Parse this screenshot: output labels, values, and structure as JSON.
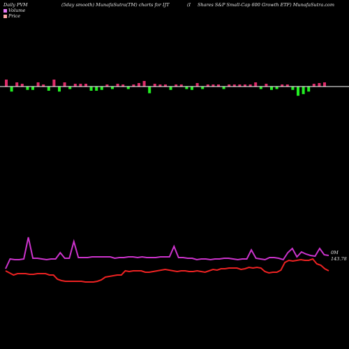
{
  "header": {
    "left": "Daily PVM",
    "middle": "(5day smooth) MunafaSutra(TM) charts for IJT",
    "right_prefix": "(I",
    "right": "Shares S&P Small-Cap 600 Growth ETF) MunafaSutra.com"
  },
  "legend": {
    "volume_label": "Volume",
    "price_label": "Price",
    "volume_color": "#e879f9",
    "price_color": "#fca5a5"
  },
  "labels": {
    "volume_end": "0M",
    "price_end": "143.78"
  },
  "colors": {
    "background": "#000000",
    "up_bar": "#dd2b6a",
    "down_bar": "#22ee22",
    "volume_line": "#cc33cc",
    "price_line": "#ee2222",
    "baseline": "#ffffff"
  },
  "chart_data": {
    "type": "line",
    "bars": {
      "dirs": [
        1,
        -1,
        1,
        1,
        -1,
        -1,
        1,
        1,
        -1,
        1,
        -1,
        1,
        -1,
        1,
        1,
        1,
        -1,
        -1,
        -1,
        1,
        -1,
        1,
        1,
        -1,
        1,
        1,
        1,
        -1,
        1,
        1,
        1,
        -1,
        1,
        1,
        -1,
        -1,
        1,
        -1,
        1,
        1,
        1,
        -1,
        1,
        1,
        1,
        1,
        1,
        1,
        -1,
        1,
        -1,
        -1,
        1,
        1,
        -1,
        -1,
        -1,
        -1,
        1,
        1,
        1
      ],
      "mags": [
        10,
        6,
        6,
        4,
        4,
        4,
        6,
        3,
        5,
        10,
        6,
        6,
        3,
        4,
        4,
        4,
        5,
        5,
        4,
        3,
        3,
        4,
        3,
        3,
        3,
        5,
        8,
        8,
        4,
        3,
        3,
        4,
        3,
        3,
        3,
        4,
        5,
        3,
        3,
        3,
        3,
        3,
        3,
        3,
        3,
        3,
        3,
        6,
        3,
        4,
        4,
        3,
        3,
        3,
        4,
        11,
        9,
        6,
        4,
        5,
        6
      ]
    },
    "volume_line": [
      385,
      371,
      372,
      372,
      371,
      340,
      370,
      370,
      371,
      372,
      371,
      371,
      362,
      370,
      370,
      346,
      369,
      369,
      369,
      368,
      368,
      368,
      368,
      368,
      370,
      369,
      369,
      368,
      368,
      369,
      368,
      369,
      369,
      369,
      368,
      368,
      368,
      353,
      369,
      369,
      370,
      370,
      372,
      371,
      371,
      372,
      371,
      371,
      370,
      370,
      371,
      372,
      371,
      371,
      358,
      370,
      371,
      372,
      369,
      369,
      370,
      372,
      362,
      356,
      368,
      361,
      364,
      366,
      367,
      356,
      365,
      366
    ],
    "price_line": [
      12,
      9,
      6,
      8,
      8,
      8,
      7,
      7,
      8,
      8,
      8,
      6,
      6,
      0,
      -2,
      -3,
      -3,
      -3,
      -3,
      -3,
      -4,
      -4,
      -4,
      -3,
      -1,
      3,
      4,
      5,
      6,
      6,
      12,
      11,
      12,
      12,
      12,
      10,
      10,
      11,
      12,
      13,
      14,
      13,
      12,
      11,
      12,
      12,
      11,
      11,
      12,
      11,
      10,
      12,
      14,
      13,
      15,
      15,
      16,
      16,
      16,
      14,
      15,
      17,
      16,
      17,
      16,
      11,
      9,
      10,
      10,
      13,
      24,
      27,
      26,
      27,
      28,
      27,
      27,
      29,
      22,
      20,
      15,
      12
    ]
  }
}
